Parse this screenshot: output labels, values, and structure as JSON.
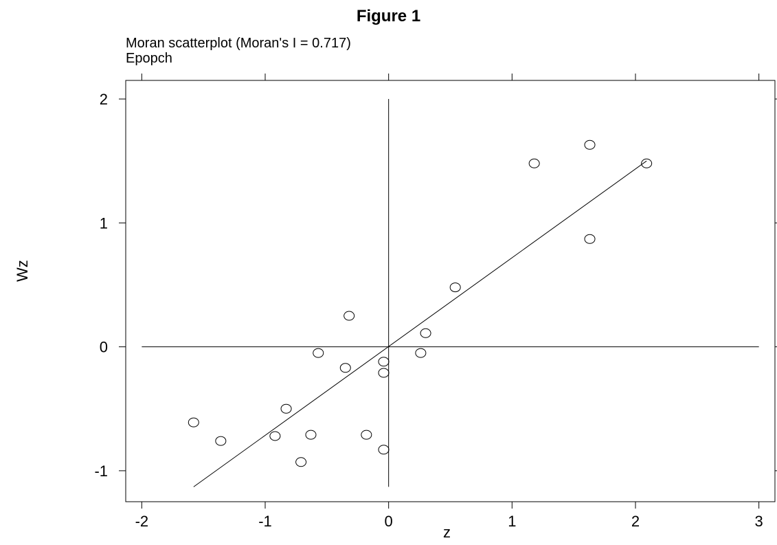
{
  "figure": {
    "title": "Figure 1",
    "subtitle_line1": "Moran scatterplot (Moran's I = 0.717)",
    "subtitle_line2": "Epopch",
    "x_label": "z",
    "y_label": "Wz"
  },
  "chart_data": {
    "type": "scatter",
    "title": "Moran scatterplot (Moran's I = 0.717)",
    "subtitle": "Epopch",
    "xlabel": "z",
    "ylabel": "Wz",
    "xlim": [
      -2.13,
      3.13
    ],
    "ylim": [
      -1.25,
      2.15
    ],
    "x_ticks": [
      -2,
      -1,
      0,
      1,
      2,
      3
    ],
    "y_ticks": [
      -1,
      0,
      1,
      2
    ],
    "x_tick_labels": [
      "-2",
      "-1",
      "0",
      "1",
      "2",
      "3"
    ],
    "y_tick_labels": [
      "-1",
      "0",
      "1",
      "2"
    ],
    "reference_lines": {
      "vertical_x": 0,
      "horizontal_y": 0
    },
    "points": [
      {
        "x": -1.58,
        "y": -0.61
      },
      {
        "x": -1.36,
        "y": -0.76
      },
      {
        "x": -0.92,
        "y": -0.72
      },
      {
        "x": -0.83,
        "y": -0.5
      },
      {
        "x": -0.71,
        "y": -0.93
      },
      {
        "x": -0.63,
        "y": -0.71
      },
      {
        "x": -0.57,
        "y": -0.05
      },
      {
        "x": -0.35,
        "y": -0.17
      },
      {
        "x": -0.32,
        "y": 0.25
      },
      {
        "x": -0.18,
        "y": -0.71
      },
      {
        "x": -0.04,
        "y": -0.12
      },
      {
        "x": -0.04,
        "y": -0.21
      },
      {
        "x": -0.04,
        "y": -0.83
      },
      {
        "x": 0.26,
        "y": -0.05
      },
      {
        "x": 0.3,
        "y": 0.11
      },
      {
        "x": 0.54,
        "y": 0.48
      },
      {
        "x": 1.18,
        "y": 1.48
      },
      {
        "x": 1.63,
        "y": 1.63
      },
      {
        "x": 1.63,
        "y": 0.87
      },
      {
        "x": 2.09,
        "y": 1.48
      }
    ],
    "fit_line": {
      "x_start": -1.58,
      "x_end": 2.09,
      "y_start": -1.13,
      "y_end": 1.5
    },
    "ref_line_extent": {
      "v_y_from": -1.13,
      "v_y_to": 2.0,
      "h_x_from": -2.0,
      "h_x_to": 3.0
    },
    "grid": false
  }
}
